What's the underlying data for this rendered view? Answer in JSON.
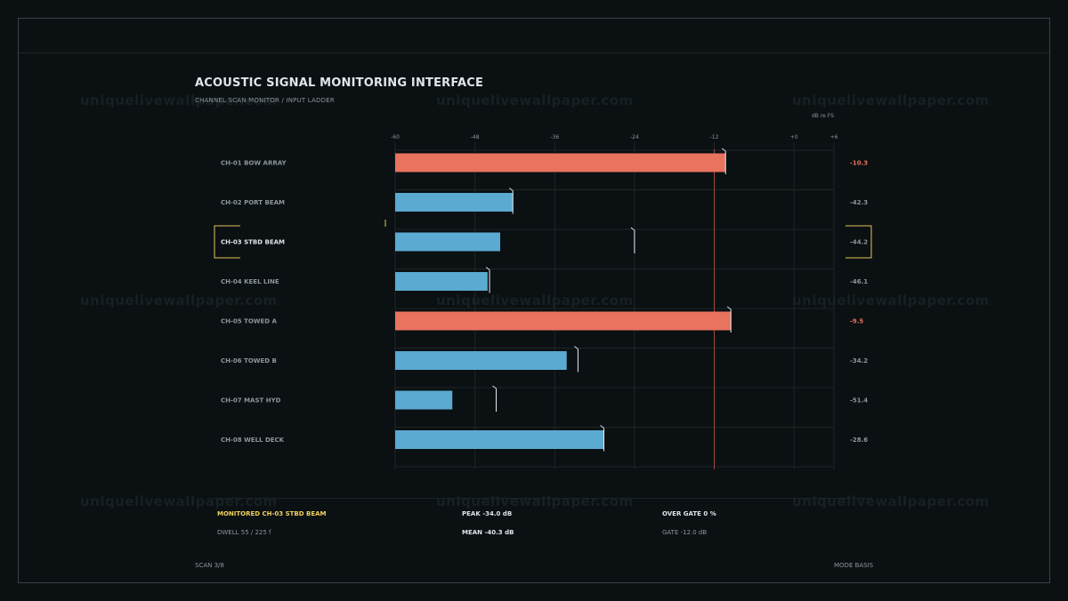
{
  "header": {
    "title": "ACOUSTIC SIGNAL MONITORING INTERFACE",
    "subtitle": "CHANNEL SCAN MONITOR / INPUT LADDER",
    "unit_label": "dB re FS"
  },
  "watermark": "uniquelivewallpaper.com",
  "chart_data": {
    "type": "bar",
    "orientation": "horizontal",
    "xlim": [
      -60,
      6
    ],
    "x_ticks": [
      "-60",
      "-48",
      "-36",
      "-24",
      "-12",
      "+0",
      "+6"
    ],
    "x_tick_values": [
      -60,
      -48,
      -36,
      -24,
      -12,
      0,
      6
    ],
    "gate": -12,
    "grid": true,
    "selected_index": 2,
    "categories": [
      "CH-01  BOW ARRAY",
      "CH-02  PORT BEAM",
      "CH-03  STBD BEAM",
      "CH-04  KEEL LINE",
      "CH-05  TOWED A",
      "CH-06  TOWED B",
      "CH-07  MAST HYD",
      "CH-08  WELL DECK"
    ],
    "values": [
      -10.3,
      -42.3,
      -44.2,
      -46.1,
      -9.5,
      -34.2,
      -51.4,
      -28.6
    ],
    "value_labels": [
      "-10.3",
      "-42.3",
      "-44.2",
      "-46.1",
      "-9.5",
      "-34.2",
      "-51.4",
      "-28.6"
    ],
    "peaks": [
      -10.3,
      -42.3,
      -24.0,
      -45.8,
      -9.5,
      -32.5,
      -44.8,
      -28.6
    ],
    "over_gate": [
      true,
      false,
      false,
      false,
      true,
      false,
      false,
      false
    ],
    "colors": {
      "over": "#e8735f",
      "normal": "#5aaad1",
      "gate_line": "#a84a42",
      "selected": "#e6c35a",
      "grid": "#1e2629",
      "label": "#8c969c",
      "label_selected": "#dfe5e9"
    }
  },
  "footer": {
    "monitored": "MONITORED CH-03  STBD BEAM",
    "dwell": "DWELL  55 / 225 f",
    "peak": "PEAK  -34.0 dB",
    "mean": "MEAN  -40.3 dB",
    "over_gate": "OVER GATE   0 %",
    "gate": "GATE -12.0 dB",
    "scan": "SCAN 3/8",
    "mode": "MODE BASIS"
  }
}
